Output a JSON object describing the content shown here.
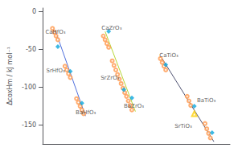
{
  "chart_data": {
    "type": "scatter",
    "ylabel": "ΔcoxHm / kJ mol⁻¹",
    "xlim": [
      0.0,
      10.5
    ],
    "xticks": [],
    "ylim": [
      -175,
      5
    ],
    "yticks": [
      0,
      -50,
      -100,
      -150
    ],
    "tick_labels": "y",
    "grid": false,
    "series": [
      {
        "type": "line",
        "line_style": "solid",
        "x": [
          0.7,
          2.4
        ],
        "values": [
          -24,
          -138
        ]
      },
      {
        "type": "line",
        "line_style": "solid",
        "x": [
          3.5,
          5.2
        ],
        "values": [
          -26,
          -132
        ]
      },
      {
        "type": "line",
        "line_style": "solid",
        "x": [
          6.7,
          9.6
        ],
        "values": [
          -62,
          -172
        ]
      },
      {
        "type": "scatter",
        "marker": "circle_open",
        "x": [
          0.55,
          0.65,
          0.75,
          0.85,
          1.25,
          1.35,
          1.45,
          1.55,
          1.9,
          2.0,
          2.1,
          2.2,
          2.3,
          3.4,
          3.5,
          3.6,
          3.7,
          3.9,
          4.0,
          4.1,
          4.2,
          4.3,
          4.4,
          4.5,
          4.6,
          4.7,
          4.8,
          4.9,
          5.0,
          6.6,
          6.7,
          6.8,
          6.9,
          8.1,
          8.2,
          8.3,
          9.1,
          9.2,
          9.3,
          9.4
        ],
        "values": [
          -22,
          -27,
          -32,
          -37,
          -72,
          -77,
          -82,
          -87,
          -115,
          -120,
          -125,
          -130,
          -135,
          -32,
          -37,
          -42,
          -47,
          -65,
          -71,
          -77,
          -83,
          -89,
          -95,
          -101,
          -107,
          -112,
          -118,
          -124,
          -130,
          -62,
          -67,
          -72,
          -77,
          -112,
          -118,
          -124,
          -148,
          -155,
          -161,
          -167
        ]
      },
      {
        "type": "scatter",
        "marker": "diamond",
        "x": [
          0.85,
          1.55,
          2.2,
          3.7,
          4.55,
          5.0,
          6.9,
          8.5,
          9.5
        ],
        "values": [
          -46,
          -79,
          -121,
          -26,
          -103,
          -114,
          -70,
          -125,
          -160
        ]
      },
      {
        "type": "scatter",
        "marker": "triangle_open",
        "x": [
          8.5
        ],
        "values": [
          -135
        ]
      }
    ],
    "annotations": [
      {
        "text": "CaHfO₃",
        "x": 0.15,
        "y": -27
      },
      {
        "text": "SrHfO₃",
        "x": 0.2,
        "y": -78
      },
      {
        "text": "BaHfO₃",
        "x": 1.85,
        "y": -133
      },
      {
        "text": "CaZrO₃",
        "x": 3.3,
        "y": -22
      },
      {
        "text": "SrZrO₃",
        "x": 3.25,
        "y": -88
      },
      {
        "text": "BaZrO₃",
        "x": 4.55,
        "y": -125
      },
      {
        "text": "CaTiO₃",
        "x": 6.55,
        "y": -58
      },
      {
        "text": "BaTiO₃",
        "x": 8.65,
        "y": -118
      },
      {
        "text": "SrTiO₃",
        "x": 7.4,
        "y": -152
      }
    ]
  }
}
